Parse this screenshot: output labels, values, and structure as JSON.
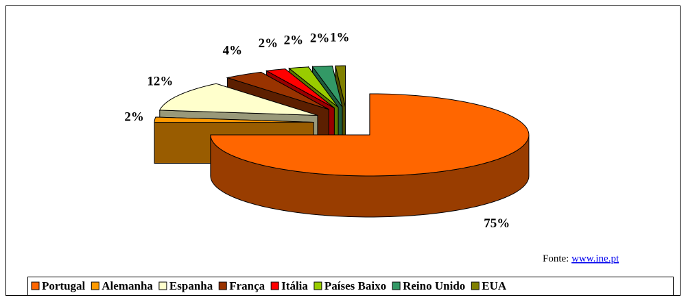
{
  "chart_data": {
    "type": "pie",
    "categories": [
      "Portugal",
      "Alemanha",
      "Espanha",
      "França",
      "Itália",
      "Países Baixo",
      "Reino Unido",
      "EUA"
    ],
    "values": [
      75,
      2,
      12,
      4,
      2,
      2,
      2,
      1
    ],
    "value_labels": [
      "75%",
      "2%",
      "12%",
      "4%",
      "2%",
      "2%",
      "2%",
      "1%"
    ],
    "colors": [
      "#ff6600",
      "#ff9900",
      "#ffffcc",
      "#993300",
      "#ff0000",
      "#99cc00",
      "#339966",
      "#808000"
    ],
    "legend": "bottom"
  },
  "source": {
    "prefix": "Fonte:",
    "link": "www.ine.pt"
  }
}
